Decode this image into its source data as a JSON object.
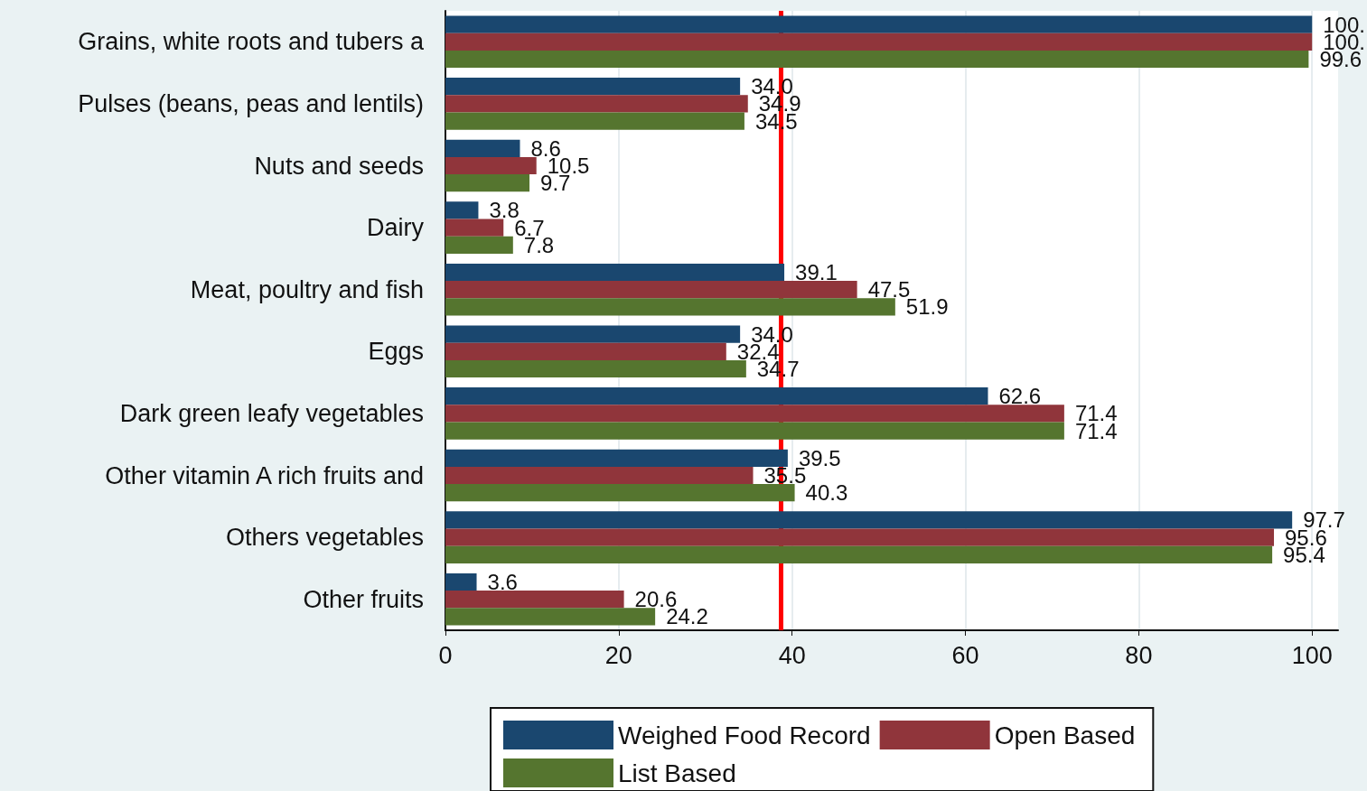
{
  "chart_data": {
    "type": "bar",
    "orientation": "horizontal",
    "categories": [
      "Grains, white roots and tubers a",
      "Pulses (beans, peas and lentils)",
      "Nuts and seeds",
      "Dairy",
      "Meat, poultry and fish",
      "Eggs",
      "Dark green leafy vegetables",
      "Other vitamin A rich fruits and",
      "Others vegetables",
      "Other fruits"
    ],
    "series": [
      {
        "name": "Weighed Food Record",
        "color": "#1a476f",
        "values": [
          100.0,
          34.0,
          8.6,
          3.8,
          39.1,
          34.0,
          62.6,
          39.5,
          97.7,
          3.6
        ],
        "value_labels": [
          "100.",
          "34.0",
          "8.6",
          "3.8",
          "39.1",
          "34.0",
          "62.6",
          "39.5",
          "97.7",
          "3.6"
        ]
      },
      {
        "name": "Open Based",
        "color": "#90353b",
        "values": [
          100.0,
          34.9,
          10.5,
          6.7,
          47.5,
          32.4,
          71.4,
          35.5,
          95.6,
          20.6
        ],
        "value_labels": [
          "100.",
          "34.9",
          "10.5",
          "6.7",
          "47.5",
          "32.4",
          "71.4",
          "35.5",
          "95.6",
          "20.6"
        ]
      },
      {
        "name": "List Based",
        "color": "#55752f",
        "values": [
          99.6,
          34.5,
          9.7,
          7.8,
          51.9,
          34.7,
          71.4,
          40.3,
          95.4,
          24.2
        ],
        "value_labels": [
          "99.6",
          "34.5",
          "9.7",
          "7.8",
          "51.9",
          "34.7",
          "71.4",
          "40.3",
          "95.4",
          "24.2"
        ]
      }
    ],
    "xlim": [
      0,
      103
    ],
    "xticks": [
      0,
      20,
      40,
      60,
      80,
      100
    ],
    "grid": "x",
    "legend": "bottom",
    "ref_lines": [
      {
        "axis": "x",
        "value": 38.7,
        "label": null,
        "color": "#ff0000"
      }
    ]
  }
}
